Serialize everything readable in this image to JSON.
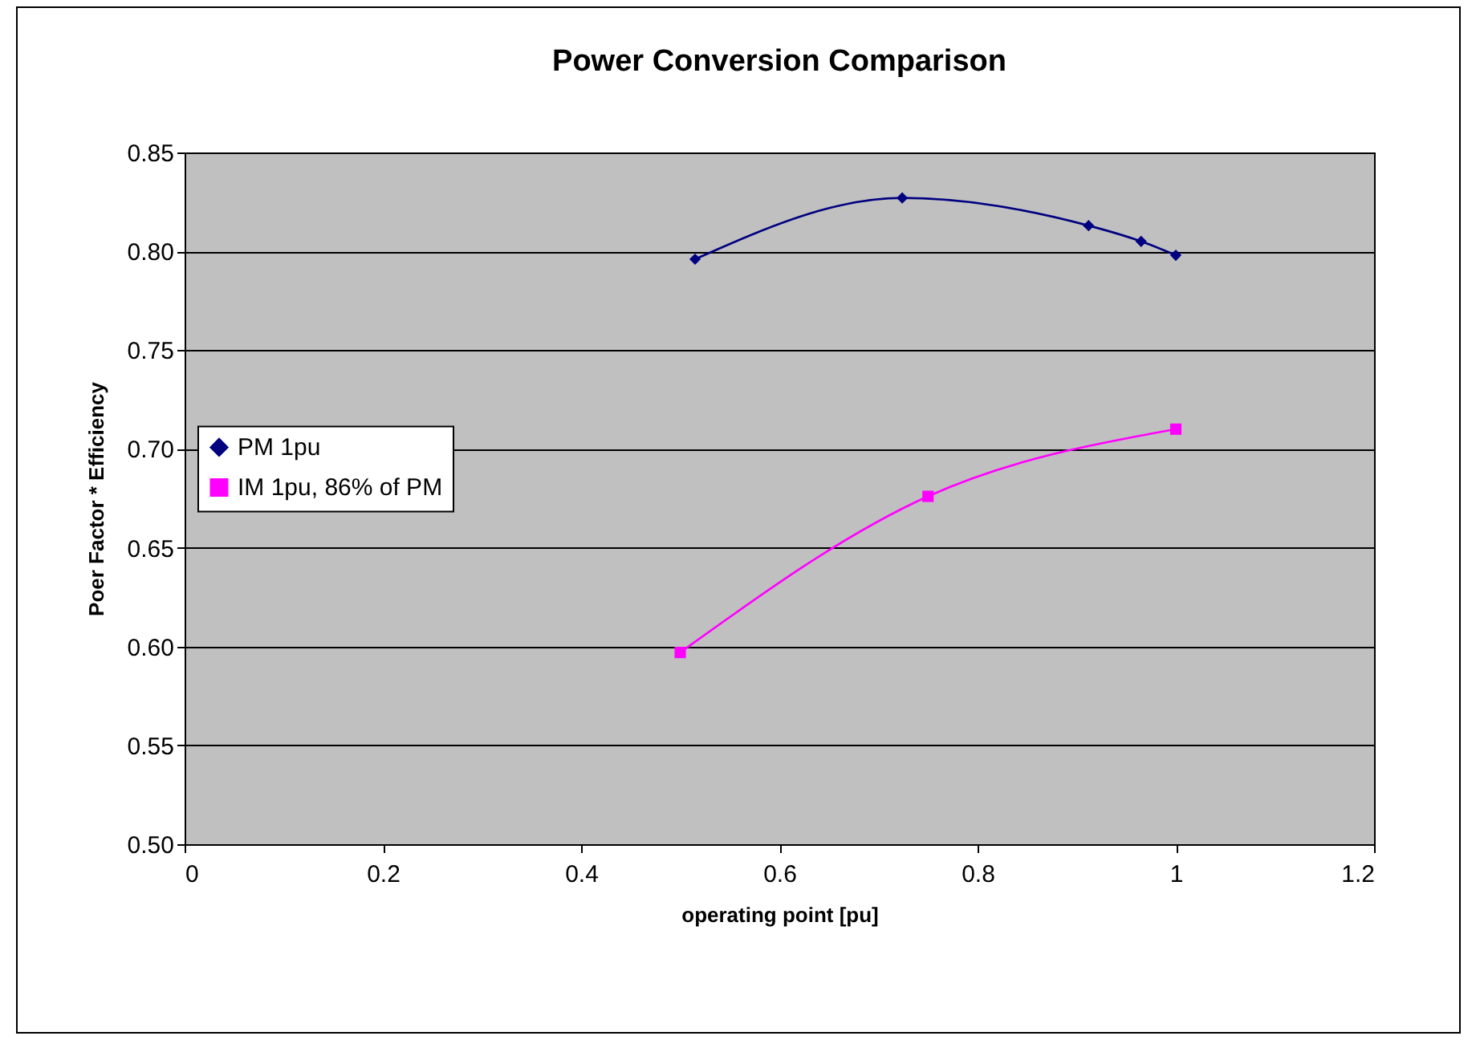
{
  "chart_data": {
    "type": "line",
    "title": "Power Conversion Comparison",
    "xlabel": "operating point [pu]",
    "ylabel": "Poer Factor * Efficiency",
    "xlim": [
      0,
      1.2
    ],
    "xticks": [
      0,
      0.2,
      0.4,
      0.6,
      0.8,
      1,
      1.2
    ],
    "ylim": [
      0.5,
      0.85
    ],
    "yticks": [
      {
        "value": 0.5,
        "label": "0.50"
      },
      {
        "value": 0.55,
        "label": "0.55"
      },
      {
        "value": 0.6,
        "label": "0.60"
      },
      {
        "value": 0.65,
        "label": "0.65"
      },
      {
        "value": 0.7,
        "label": "0.70"
      },
      {
        "value": 0.75,
        "label": "0.75"
      },
      {
        "value": 0.8,
        "label": "0.80"
      },
      {
        "value": 0.85,
        "label": "0.85"
      }
    ],
    "grid": "y",
    "legend": "left",
    "line_style": "solid",
    "series": [
      {
        "name": "PM 1pu",
        "color": "#000080",
        "marker": "diamond",
        "x": [
          0.515,
          0.724,
          0.912,
          0.965,
          1.0
        ],
        "values": [
          0.796,
          0.827,
          0.813,
          0.805,
          0.798
        ]
      },
      {
        "name": "IM 1pu, 86% of PM",
        "color": "#ff00ff",
        "marker": "square",
        "x": [
          0.5,
          0.75,
          1.0
        ],
        "values": [
          0.597,
          0.676,
          0.71
        ]
      }
    ]
  }
}
